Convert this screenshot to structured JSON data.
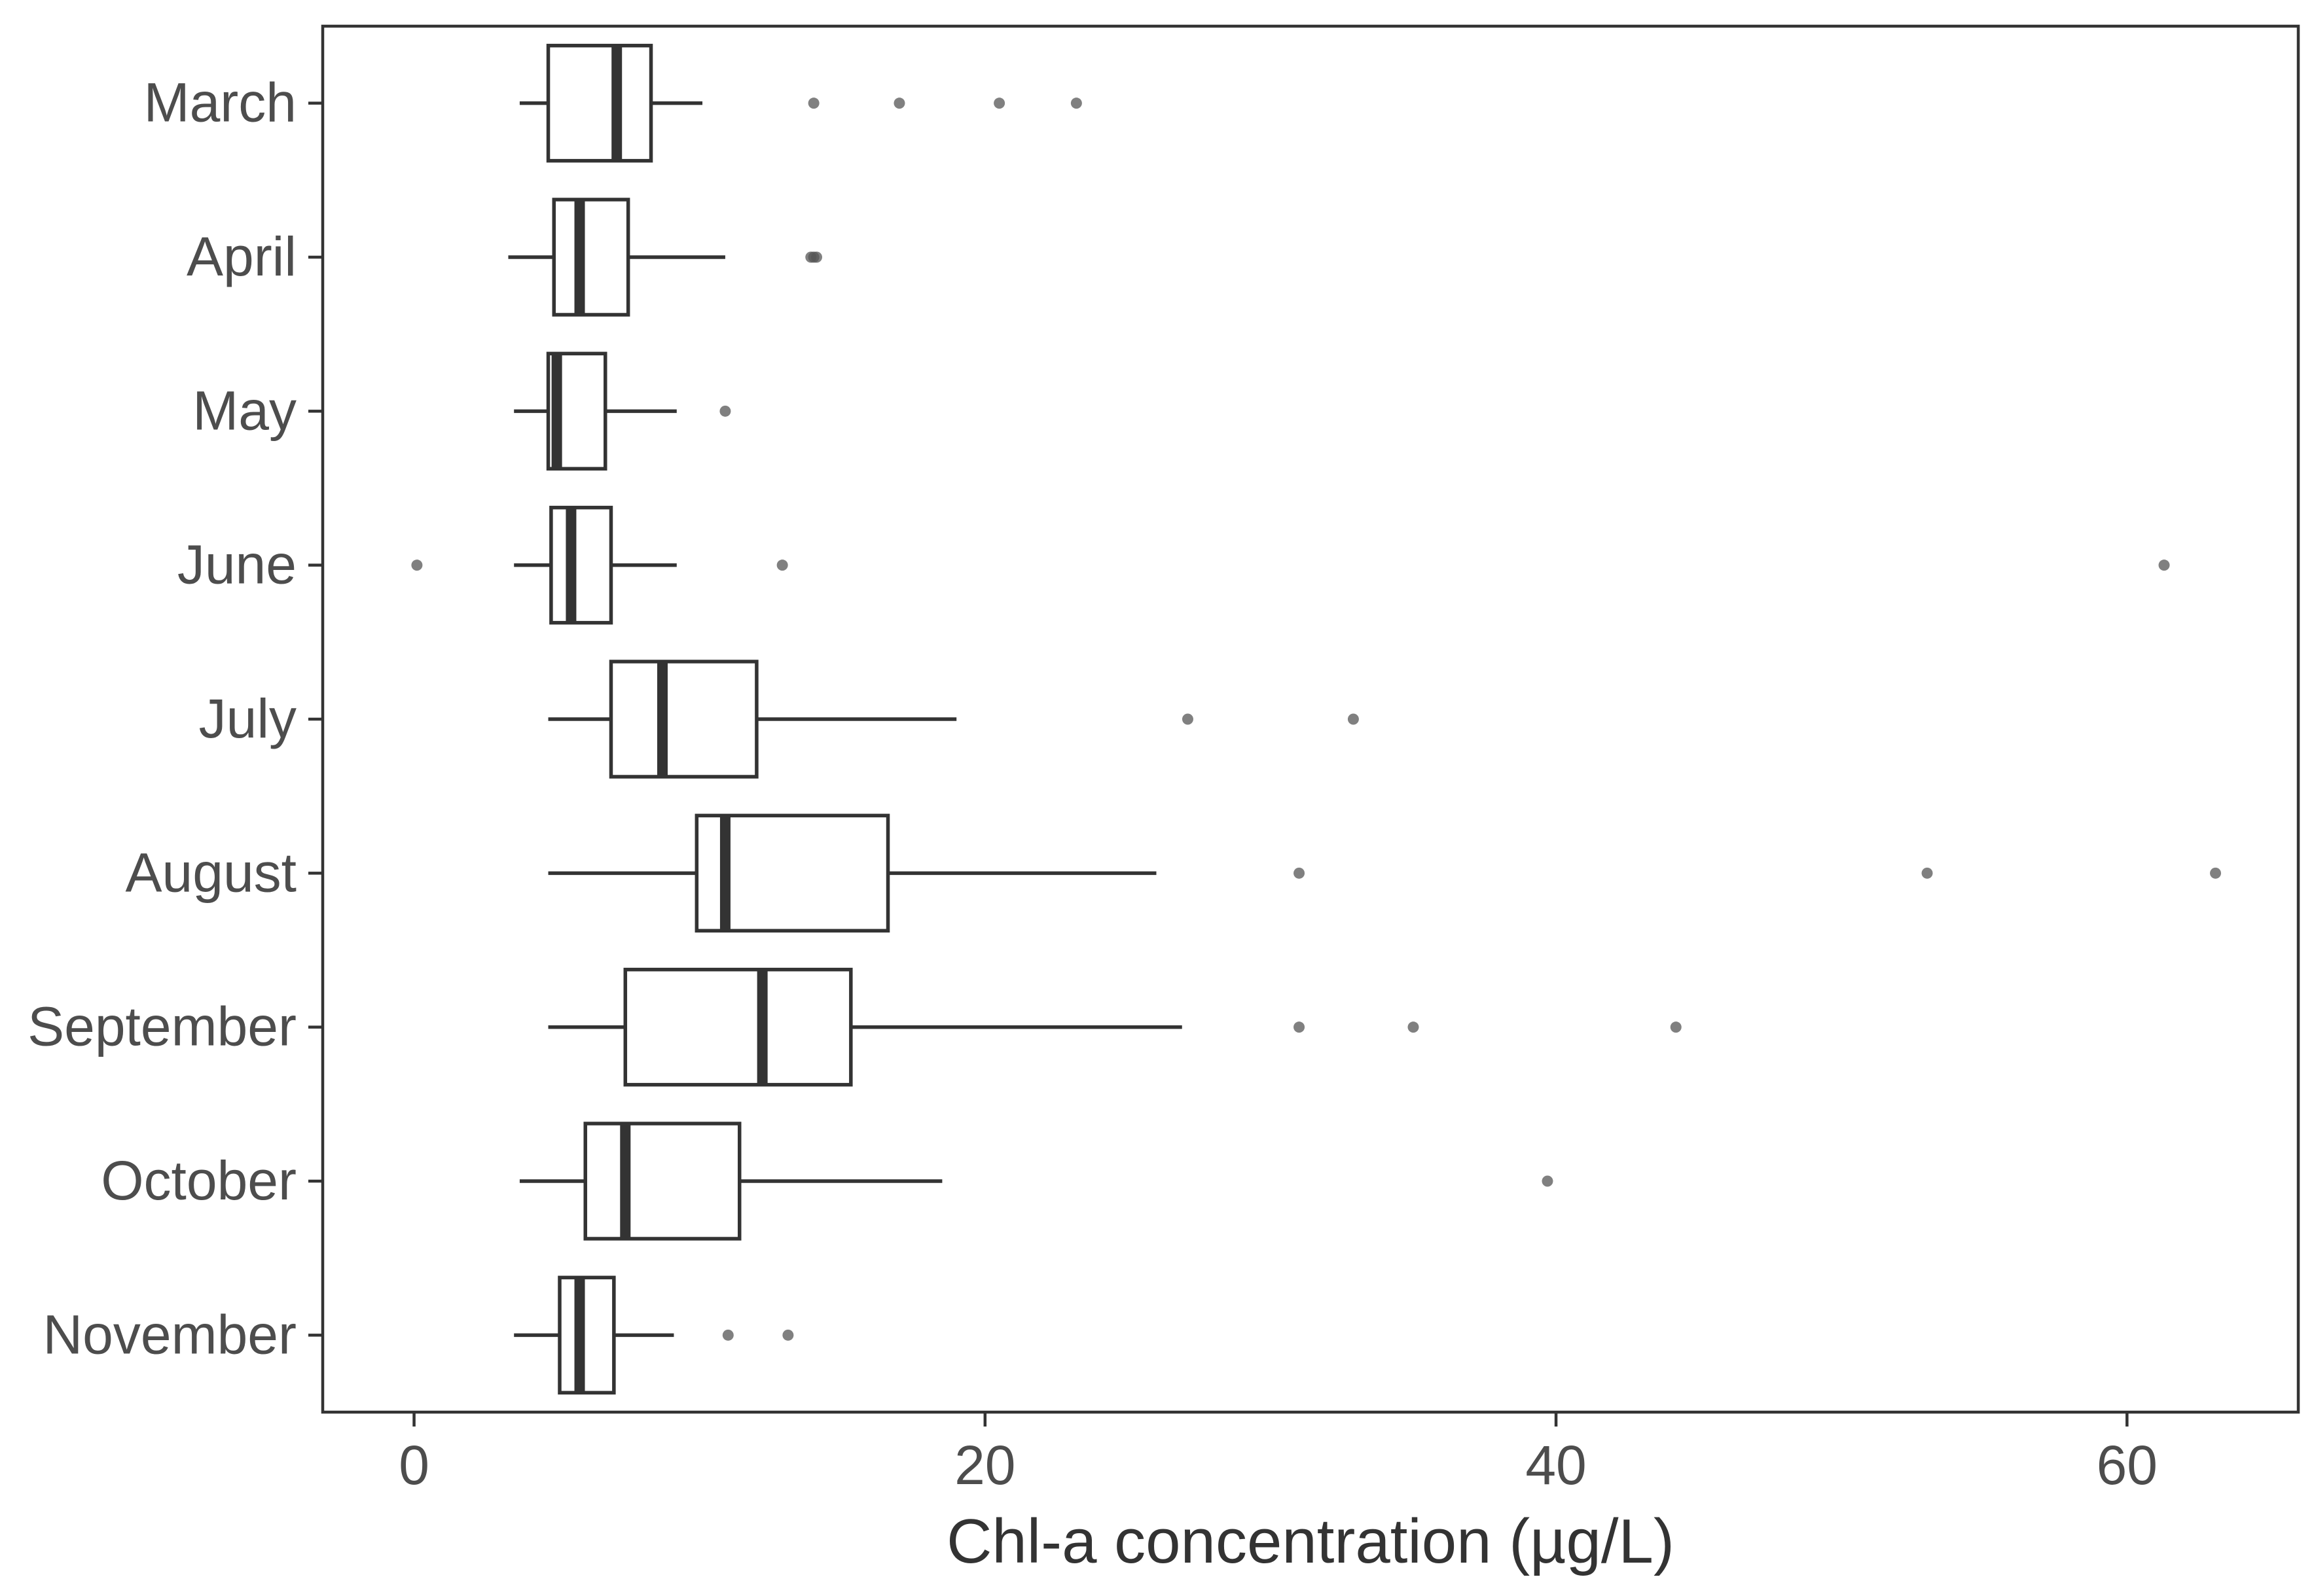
{
  "chart_data": {
    "type": "boxplot",
    "orientation": "horizontal",
    "title": "",
    "xlabel": "Chl-a concentration (µg/L)",
    "ylabel": "",
    "xlim": [
      -3.2,
      66.0
    ],
    "x_ticks": [
      0,
      20,
      40,
      60
    ],
    "x_tick_labels": [
      "0",
      "20",
      "40",
      "60"
    ],
    "grid": false,
    "legend": "none",
    "categories": [
      "March",
      "April",
      "May",
      "June",
      "July",
      "August",
      "September",
      "October",
      "November"
    ],
    "boxes": [
      {
        "name": "March",
        "whisker_low": 3.7,
        "q1": 4.7,
        "median": 7.1,
        "q3": 8.3,
        "whisker_high": 10.1,
        "outliers": [
          14.0,
          17.0,
          20.5,
          23.2
        ]
      },
      {
        "name": "April",
        "whisker_low": 3.3,
        "q1": 4.9,
        "median": 5.8,
        "q3": 7.5,
        "whisker_high": 10.9,
        "outliers": [
          13.9,
          14.0,
          14.1
        ]
      },
      {
        "name": "May",
        "whisker_low": 3.5,
        "q1": 4.7,
        "median": 5.0,
        "q3": 6.7,
        "whisker_high": 9.2,
        "outliers": [
          10.9
        ]
      },
      {
        "name": "June",
        "whisker_low": 3.5,
        "q1": 4.8,
        "median": 5.5,
        "q3": 6.9,
        "whisker_high": 9.2,
        "outliers": [
          0.1,
          12.9,
          61.3
        ]
      },
      {
        "name": "July",
        "whisker_low": 4.7,
        "q1": 6.9,
        "median": 8.7,
        "q3": 12.0,
        "whisker_high": 19.0,
        "outliers": [
          27.1,
          32.9
        ]
      },
      {
        "name": "August",
        "whisker_low": 4.7,
        "q1": 9.9,
        "median": 10.9,
        "q3": 16.6,
        "whisker_high": 26.0,
        "outliers": [
          31.0,
          53.0,
          63.1
        ]
      },
      {
        "name": "September",
        "whisker_low": 4.7,
        "q1": 7.4,
        "median": 12.2,
        "q3": 15.3,
        "whisker_high": 26.9,
        "outliers": [
          31.0,
          35.0,
          44.2
        ]
      },
      {
        "name": "October",
        "whisker_low": 3.7,
        "q1": 6.0,
        "median": 7.4,
        "q3": 11.4,
        "whisker_high": 18.5,
        "outliers": [
          39.7
        ]
      },
      {
        "name": "November",
        "whisker_low": 3.5,
        "q1": 5.1,
        "median": 5.8,
        "q3": 7.0,
        "whisker_high": 9.1,
        "outliers": [
          11.0,
          13.1
        ]
      }
    ],
    "colors": {
      "box_stroke": "#333333",
      "box_fill": "#ffffff",
      "outlier": "#555555",
      "panel_border": "#333333",
      "tick_text": "#4d4d4d",
      "axis_title": "#333333"
    }
  }
}
